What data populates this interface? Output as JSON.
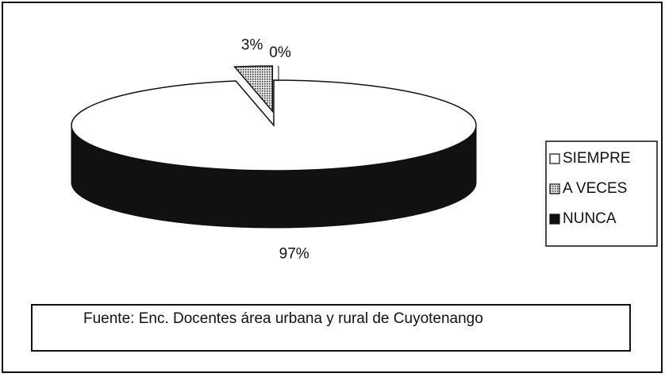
{
  "chart_data": {
    "type": "pie",
    "categories": [
      "SIEMPRE",
      "A VECES",
      "NUNCA"
    ],
    "values": [
      97,
      3,
      0
    ],
    "value_labels": [
      "97%",
      "3%",
      "0%"
    ],
    "colors": [
      "#ffffff",
      "#9a9a9a",
      "#111111"
    ],
    "legend": "right",
    "source": "Fuente: Enc. Docentes área urbana y rural de Cuyotenango"
  }
}
